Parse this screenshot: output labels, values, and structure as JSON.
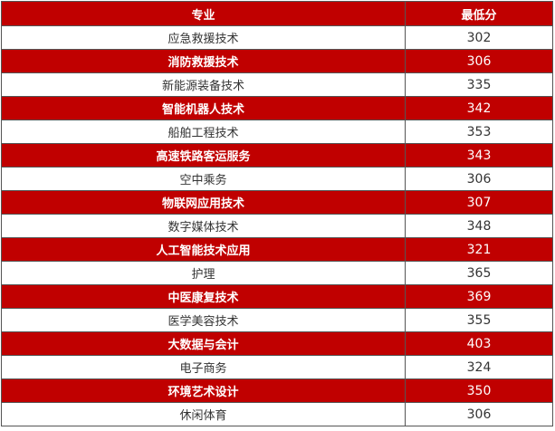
{
  "header": {
    "major": "专业",
    "min_score": "最低分"
  },
  "rows": [
    {
      "major": "应急救援技术",
      "score": "302",
      "highlight": false
    },
    {
      "major": "消防救援技术",
      "score": "306",
      "highlight": true
    },
    {
      "major": "新能源装备技术",
      "score": "335",
      "highlight": false
    },
    {
      "major": "智能机器人技术",
      "score": "342",
      "highlight": true
    },
    {
      "major": "船舶工程技术",
      "score": "353",
      "highlight": false
    },
    {
      "major": "高速铁路客运服务",
      "score": "343",
      "highlight": true
    },
    {
      "major": "空中乘务",
      "score": "306",
      "highlight": false
    },
    {
      "major": "物联网应用技术",
      "score": "307",
      "highlight": true
    },
    {
      "major": "数字媒体技术",
      "score": "348",
      "highlight": false
    },
    {
      "major": "人工智能技术应用",
      "score": "321",
      "highlight": true
    },
    {
      "major": "护理",
      "score": "365",
      "highlight": false
    },
    {
      "major": "中医康复技术",
      "score": "369",
      "highlight": true
    },
    {
      "major": "医学美容技术",
      "score": "355",
      "highlight": false
    },
    {
      "major": "大数据与会计",
      "score": "403",
      "highlight": true
    },
    {
      "major": "电子商务",
      "score": "324",
      "highlight": false
    },
    {
      "major": "环境艺术设计",
      "score": "350",
      "highlight": true
    },
    {
      "major": "休闲体育",
      "score": "306",
      "highlight": false
    }
  ],
  "colors": {
    "highlight": "#c00000",
    "border": "#555555"
  }
}
